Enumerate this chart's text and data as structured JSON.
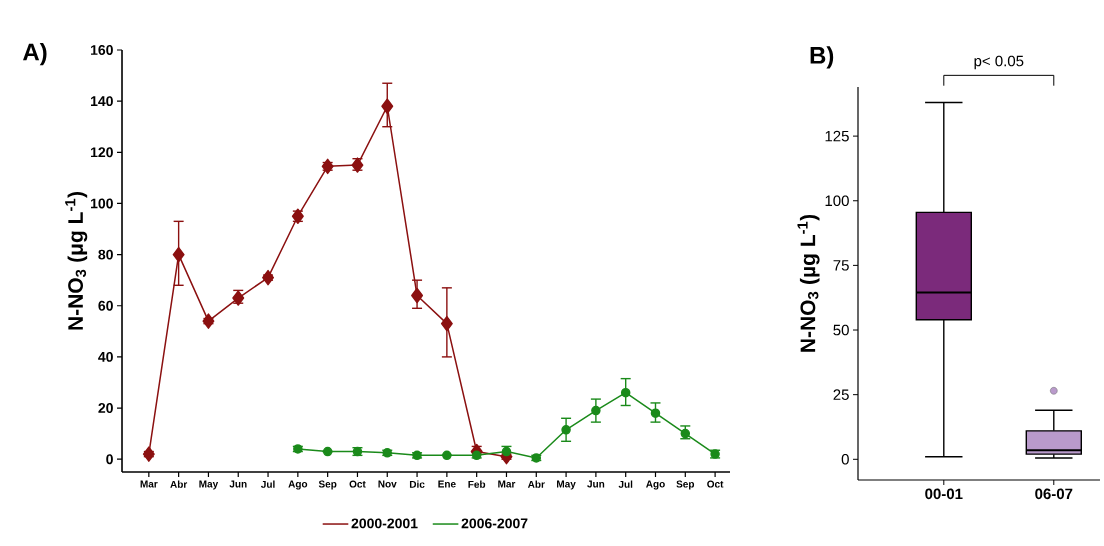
{
  "chart_data": [
    {
      "type": "line",
      "title": "A)",
      "ylabel": "N-NO$_{3}$ (μg L$^{-1}$)",
      "categories": [
        "Mar",
        "Abr",
        "May",
        "Jun",
        "Jul",
        "Ago",
        "Sep",
        "Oct",
        "Nov",
        "Dic",
        "Ene",
        "Feb",
        "Mar",
        "Abr",
        "May",
        "Jun",
        "Jul",
        "Ago",
        "Sep",
        "Oct"
      ],
      "series": [
        {
          "name": "2000-2001",
          "color": "#8b1010",
          "marker": "diamond",
          "values": [
            2,
            80,
            54,
            63,
            71,
            95,
            114.5,
            115,
            138,
            64,
            53,
            3,
            1,
            null,
            null,
            null,
            null,
            null,
            null,
            null
          ],
          "errors": [
            1,
            [
              68,
              93
            ],
            1,
            [
              61,
              66
            ],
            1,
            [
              93,
              97
            ],
            [
              113,
              116
            ],
            [
              113,
              117.5
            ],
            [
              130,
              147
            ],
            [
              59,
              70
            ],
            [
              40,
              67
            ],
            [
              3,
              5
            ],
            1,
            null,
            null,
            null,
            null,
            null,
            null,
            null
          ]
        },
        {
          "name": "2006-2007",
          "color": "#1a8a1a",
          "marker": "circle",
          "values": [
            null,
            null,
            null,
            null,
            null,
            4,
            3,
            3,
            2.5,
            1.5,
            1.5,
            1.5,
            3,
            0.5,
            11.5,
            19,
            26,
            18,
            10,
            2
          ],
          "errors": [
            null,
            null,
            null,
            null,
            null,
            1,
            null,
            1.5,
            1,
            1,
            null,
            1,
            2,
            1,
            [
              7,
              16
            ],
            [
              14.5,
              23.5
            ],
            [
              21,
              31.5
            ],
            [
              14.5,
              22
            ],
            [
              8,
              13
            ],
            1.5
          ]
        }
      ],
      "ylim": [
        -5,
        160
      ],
      "yticks": [
        0,
        20,
        40,
        60,
        80,
        100,
        120,
        140,
        160
      ],
      "legend": "bottom",
      "grid": false,
      "line_style": "solid"
    },
    {
      "type": "box",
      "title": "B)",
      "ylabel": "N-NO$_{3}$ (µg L$^{-1}$)",
      "categories": [
        "00-01",
        "06-07"
      ],
      "boxes": [
        {
          "low": 1,
          "q1": 54,
          "median": 64.5,
          "q3": 95.5,
          "high": 138
        },
        {
          "low": 0.5,
          "q1": 2,
          "median": 3.5,
          "q3": 11,
          "high": 19,
          "outliers": [
            26.5
          ]
        }
      ],
      "colors": [
        "#7b2a7b",
        "#b99acb"
      ],
      "ylim": [
        -8,
        144
      ],
      "yticks": [
        0,
        25,
        50,
        75,
        100,
        125
      ],
      "grid": false,
      "annotations": [
        "p< 0.05"
      ]
    }
  ]
}
